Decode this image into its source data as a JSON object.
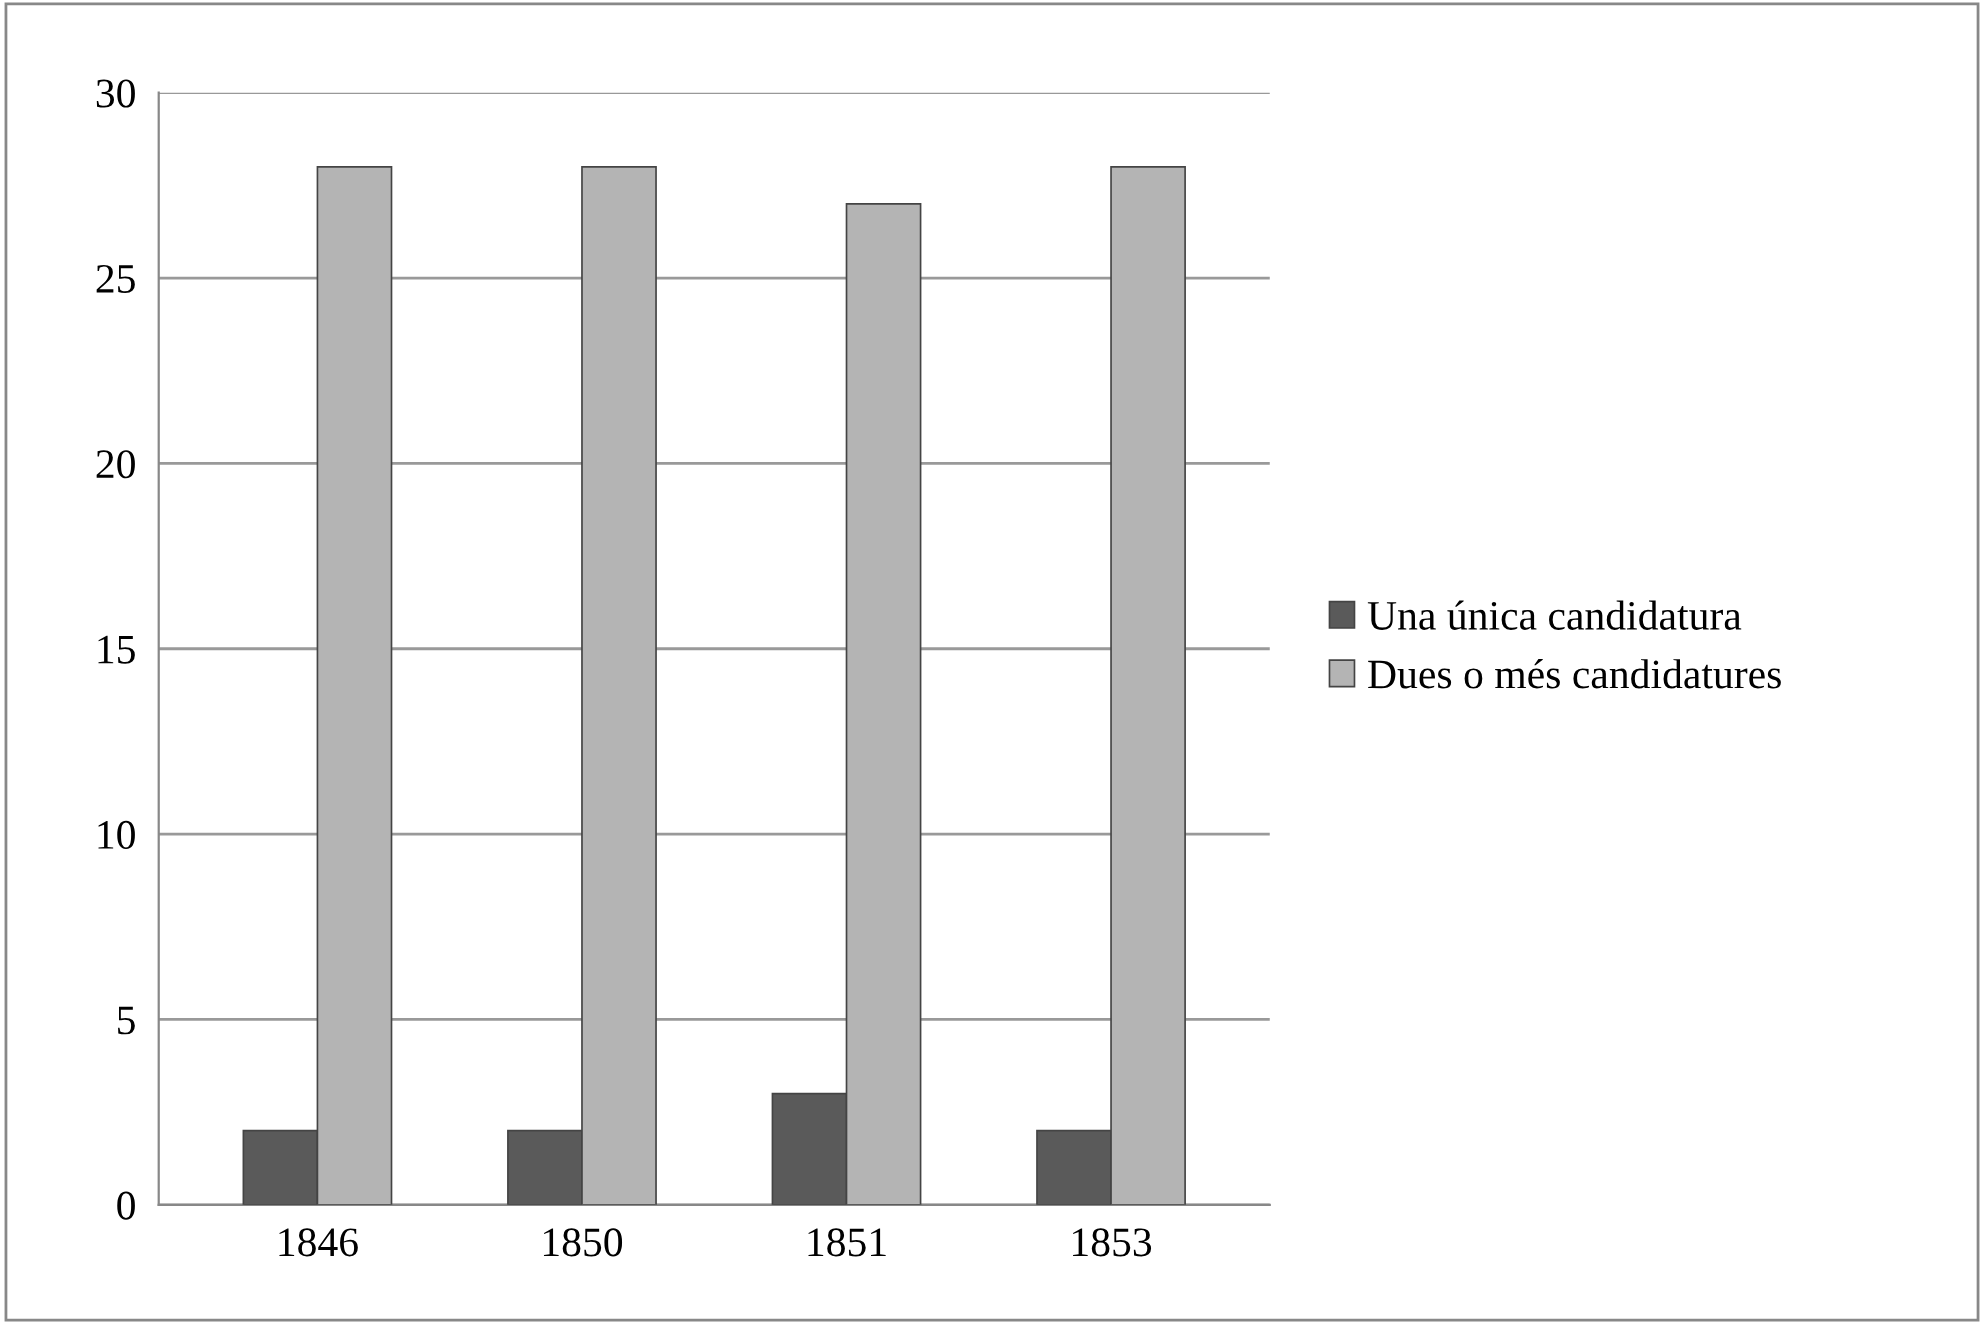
{
  "chart_data": {
    "type": "bar",
    "categories": [
      "1846",
      "1850",
      "1851",
      "1853"
    ],
    "series": [
      {
        "name": "Una única candidatura",
        "color": "#5a5a5a",
        "values": [
          2,
          2,
          3,
          2
        ]
      },
      {
        "name": "Dues o més candidatures",
        "color": "#b4b4b4",
        "values": [
          28,
          28,
          27,
          28
        ]
      }
    ],
    "ylim": [
      0,
      30
    ],
    "yticks": [
      0,
      5,
      10,
      15,
      20,
      25,
      30
    ],
    "grid": "y",
    "legend": "right"
  }
}
